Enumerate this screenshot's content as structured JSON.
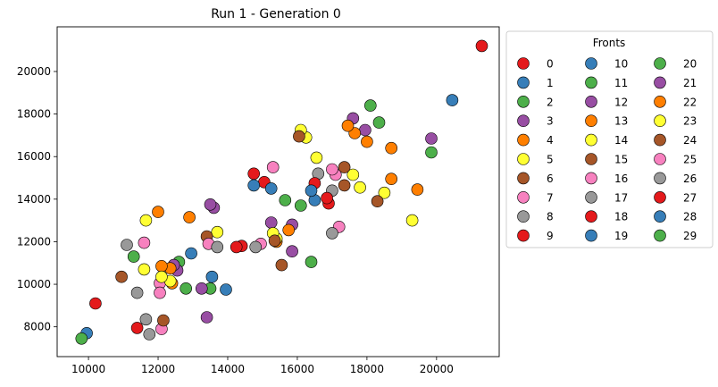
{
  "chart_data": {
    "type": "scatter",
    "title": "Run 1 - Generation 0",
    "xlabel": "",
    "ylabel": "",
    "xlim": [
      9100,
      21800
    ],
    "ylim": [
      6600,
      22100
    ],
    "xticks": [
      10000,
      12000,
      14000,
      16000,
      18000,
      20000
    ],
    "yticks": [
      8000,
      10000,
      12000,
      14000,
      16000,
      18000,
      20000
    ],
    "grid": false,
    "legend": {
      "title": "Fronts",
      "placement": "outside-right",
      "columns": 3
    },
    "palette": [
      "#e41a1c",
      "#377eb8",
      "#4daf4a",
      "#984ea3",
      "#ff7f00",
      "#ffff33",
      "#a65628",
      "#f781bf",
      "#999999"
    ],
    "series": [
      {
        "name": "0",
        "color": "#e41a1c",
        "points": [
          [
            21300,
            21200
          ]
        ]
      },
      {
        "name": "1",
        "color": "#377eb8",
        "points": [
          [
            20450,
            18650
          ]
        ]
      },
      {
        "name": "2",
        "color": "#4daf4a",
        "points": [
          [
            19850,
            16200
          ]
        ]
      },
      {
        "name": "3",
        "color": "#984ea3",
        "points": [
          [
            19850,
            16850
          ]
        ]
      },
      {
        "name": "4",
        "color": "#ff7f00",
        "points": [
          [
            19450,
            14450
          ],
          [
            18700,
            14950
          ],
          [
            18700,
            16400
          ]
        ]
      },
      {
        "name": "5",
        "color": "#ffff33",
        "points": [
          [
            19300,
            13000
          ],
          [
            18500,
            14300
          ],
          [
            17800,
            14550
          ],
          [
            17600,
            15150
          ]
        ]
      },
      {
        "name": "6",
        "color": "#a65628",
        "points": [
          [
            18300,
            13900
          ],
          [
            17350,
            14650
          ],
          [
            17350,
            15500
          ]
        ]
      },
      {
        "name": "7",
        "color": "#f781bf",
        "points": [
          [
            17200,
            12700
          ],
          [
            17100,
            15150
          ],
          [
            17000,
            15400
          ]
        ]
      },
      {
        "name": "8",
        "color": "#999999",
        "points": [
          [
            17000,
            12400
          ],
          [
            17000,
            14400
          ],
          [
            16600,
            15200
          ]
        ]
      },
      {
        "name": "9",
        "color": "#e41a1c",
        "points": [
          [
            16900,
            13800
          ],
          [
            16850,
            14050
          ],
          [
            16500,
            14750
          ],
          [
            15050,
            14800
          ],
          [
            14750,
            15200
          ]
        ]
      },
      {
        "name": "10",
        "color": "#377eb8",
        "points": [
          [
            16500,
            13950
          ],
          [
            16400,
            14400
          ],
          [
            15250,
            14500
          ],
          [
            14750,
            14650
          ]
        ]
      },
      {
        "name": "11",
        "color": "#4daf4a",
        "points": [
          [
            18350,
            17600
          ],
          [
            18100,
            18400
          ],
          [
            16400,
            11050
          ],
          [
            16100,
            13700
          ],
          [
            15650,
            13950
          ]
        ]
      },
      {
        "name": "12",
        "color": "#984ea3",
        "points": [
          [
            17950,
            17250
          ],
          [
            17600,
            17800
          ],
          [
            15850,
            12800
          ],
          [
            15850,
            11550
          ],
          [
            15250,
            12900
          ]
        ]
      },
      {
        "name": "13",
        "color": "#ff7f00",
        "points": [
          [
            18000,
            16700
          ],
          [
            17650,
            17100
          ],
          [
            17450,
            17450
          ],
          [
            15750,
            12550
          ],
          [
            15400,
            12000
          ],
          [
            12900,
            13150
          ]
        ]
      },
      {
        "name": "14",
        "color": "#ffff33",
        "points": [
          [
            16550,
            15950
          ],
          [
            16250,
            16900
          ],
          [
            16100,
            17250
          ],
          [
            15400,
            12150
          ],
          [
            15300,
            12400
          ],
          [
            13700,
            12450
          ],
          [
            11650,
            13000
          ],
          [
            11600,
            10700
          ]
        ]
      },
      {
        "name": "15",
        "color": "#a65628",
        "points": [
          [
            16050,
            16950
          ],
          [
            15550,
            10900
          ],
          [
            15350,
            12050
          ],
          [
            13400,
            12250
          ]
        ]
      },
      {
        "name": "16",
        "color": "#f781bf",
        "points": [
          [
            15300,
            15500
          ],
          [
            14950,
            11900
          ],
          [
            13450,
            11900
          ],
          [
            11600,
            11950
          ],
          [
            12050,
            10050
          ],
          [
            12050,
            9600
          ],
          [
            12100,
            7900
          ]
        ]
      },
      {
        "name": "17",
        "color": "#999999",
        "points": [
          [
            14800,
            11750
          ],
          [
            13700,
            11750
          ],
          [
            11100,
            11850
          ],
          [
            11400,
            9600
          ],
          [
            11650,
            8350
          ],
          [
            11750,
            7650
          ]
        ]
      },
      {
        "name": "18",
        "color": "#e41a1c",
        "points": [
          [
            14400,
            11800
          ],
          [
            14250,
            11750
          ],
          [
            11400,
            7950
          ],
          [
            10200,
            9100
          ]
        ]
      },
      {
        "name": "19",
        "color": "#377eb8",
        "points": [
          [
            13950,
            9750
          ],
          [
            13550,
            10350
          ],
          [
            12950,
            11450
          ],
          [
            9950,
            7700
          ]
        ]
      },
      {
        "name": "20",
        "color": "#4daf4a",
        "points": [
          [
            13500,
            9800
          ],
          [
            12800,
            9800
          ],
          [
            12600,
            11050
          ],
          [
            11300,
            11300
          ],
          [
            9800,
            7450
          ]
        ]
      },
      {
        "name": "21",
        "color": "#984ea3",
        "points": [
          [
            13600,
            13600
          ],
          [
            13500,
            13750
          ],
          [
            13250,
            9800
          ],
          [
            13400,
            8450
          ],
          [
            12550,
            10650
          ],
          [
            12450,
            10900
          ]
        ]
      },
      {
        "name": "22",
        "color": "#ff7f00",
        "points": [
          [
            12000,
            13400
          ],
          [
            12350,
            10750
          ],
          [
            12100,
            10850
          ],
          [
            12400,
            10050
          ]
        ]
      },
      {
        "name": "23",
        "color": "#ffff33",
        "points": [
          [
            12350,
            10150
          ],
          [
            12100,
            10350
          ]
        ]
      },
      {
        "name": "24",
        "color": "#a65628",
        "points": [
          [
            10950,
            10350
          ],
          [
            12150,
            8300
          ]
        ]
      },
      {
        "name": "25",
        "color": "#f781bf",
        "points": []
      },
      {
        "name": "26",
        "color": "#999999",
        "points": []
      },
      {
        "name": "27",
        "color": "#e41a1c",
        "points": []
      },
      {
        "name": "28",
        "color": "#377eb8",
        "points": []
      },
      {
        "name": "29",
        "color": "#4daf4a",
        "points": []
      }
    ]
  }
}
